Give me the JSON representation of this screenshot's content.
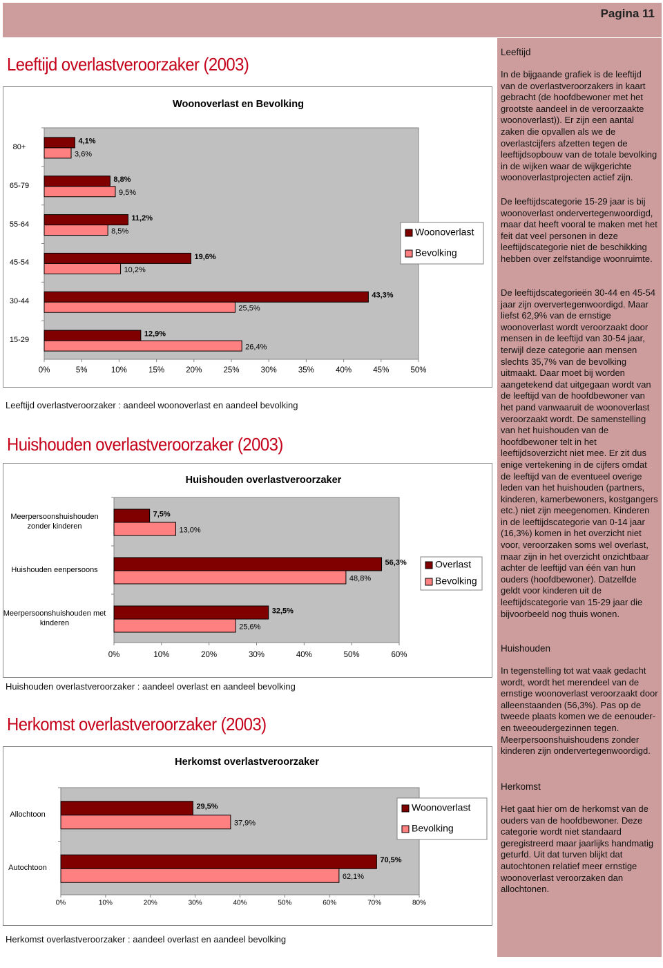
{
  "header": {
    "page": "Pagina 11"
  },
  "headings": [
    "Leeftijd overlastveroorzaker (2003)",
    "Huishouden overlastveroorzaker (2003)",
    "Herkomst overlastveroorzaker (2003)"
  ],
  "captions": [
    "Leeftijd overlastveroorzaker : aandeel woonoverlast en aandeel bevolking",
    "Huishouden overlastveroorzaker : aandeel overlast en aandeel bevolking",
    "Herkomst overlastveroorzaker : aandeel overlast en aandeel bevolking"
  ],
  "chart_data": [
    {
      "type": "bar",
      "orientation": "horizontal",
      "title": "Woonoverlast en Bevolking",
      "categories": [
        "80+",
        "65-79",
        "55-64",
        "45-54",
        "30-44",
        "15-29"
      ],
      "series": [
        {
          "name": "Woonoverlast",
          "color": "#800000",
          "values": [
            4.1,
            8.8,
            11.2,
            19.6,
            43.3,
            12.9
          ],
          "value_labels": [
            "4,1%",
            "8,8%",
            "11,2%",
            "19,6%",
            "43,3%",
            "12,9%"
          ]
        },
        {
          "name": "Bevolking",
          "color": "#ff8080",
          "values": [
            3.6,
            9.5,
            8.5,
            10.2,
            25.5,
            26.4
          ],
          "value_labels": [
            "3,6%",
            "9,5%",
            "8,5%",
            "10,2%",
            "25,5%",
            "26,4%"
          ]
        }
      ],
      "xlim": [
        0,
        50
      ],
      "xticks": [
        {
          "value": 0,
          "label": "0%"
        },
        {
          "value": 5,
          "label": "5%"
        },
        {
          "value": 10,
          "label": "10%"
        },
        {
          "value": 15,
          "label": "15%"
        },
        {
          "value": 20,
          "label": "20%"
        },
        {
          "value": 25,
          "label": "25%"
        },
        {
          "value": 30,
          "label": "30%"
        },
        {
          "value": 35,
          "label": "35%"
        },
        {
          "value": 40,
          "label": "40%"
        },
        {
          "value": 45,
          "label": "45%"
        },
        {
          "value": 50,
          "label": "50%"
        }
      ],
      "legend": "right"
    },
    {
      "type": "bar",
      "orientation": "horizontal",
      "title": "Huishouden overlastveroorzaker",
      "categories": [
        "Meerpersoonshuishouden zonder kinderen",
        "Huishouden eenpersoons",
        "Meerpersoonshuishouden met kinderen"
      ],
      "series": [
        {
          "name": "Overlast",
          "color": "#800000",
          "values": [
            7.5,
            56.3,
            32.5
          ],
          "value_labels": [
            "7,5%",
            "56,3%",
            "32,5%"
          ]
        },
        {
          "name": "Bevolking",
          "color": "#ff8080",
          "values": [
            13.0,
            48.8,
            25.6
          ],
          "value_labels": [
            "13,0%",
            "48,8%",
            "25,6%"
          ]
        }
      ],
      "xlim": [
        0,
        60
      ],
      "xticks": [
        {
          "value": 0,
          "label": "0%"
        },
        {
          "value": 10,
          "label": "10%"
        },
        {
          "value": 20,
          "label": "20%"
        },
        {
          "value": 30,
          "label": "30%"
        },
        {
          "value": 40,
          "label": "40%"
        },
        {
          "value": 50,
          "label": "50%"
        },
        {
          "value": 60,
          "label": "60%"
        }
      ],
      "legend": "right"
    },
    {
      "type": "bar",
      "orientation": "horizontal",
      "title": "Herkomst overlastveroorzaker",
      "categories": [
        "Allochtoon",
        "Autochtoon"
      ],
      "series": [
        {
          "name": "Woonoverlast",
          "color": "#800000",
          "values": [
            29.5,
            70.5
          ],
          "value_labels": [
            "29,5%",
            "70,5%"
          ]
        },
        {
          "name": "Bevolking",
          "color": "#ff8080",
          "values": [
            37.9,
            62.1
          ],
          "value_labels": [
            "37,9%",
            "62,1%"
          ]
        }
      ],
      "xlim": [
        0,
        80
      ],
      "xticks": [
        {
          "value": 0,
          "label": "0%"
        },
        {
          "value": 10,
          "label": "10%"
        },
        {
          "value": 20,
          "label": "20%"
        },
        {
          "value": 30,
          "label": "30%"
        },
        {
          "value": 40,
          "label": "40%"
        },
        {
          "value": 50,
          "label": "50%"
        },
        {
          "value": 60,
          "label": "60%"
        },
        {
          "value": 70,
          "label": "70%"
        },
        {
          "value": 80,
          "label": "80%"
        }
      ],
      "legend": "right"
    }
  ],
  "sidebar": {
    "sections": [
      {
        "heading": "Leeftijd",
        "paragraphs": [
          "In de bijgaande grafiek is de leeftijd van de overlastveroorzakers in kaart gebracht (de hoofdbewoner met het grootste aandeel in de veroorzaakte woonoverlast)). Er zijn een aantal zaken die opvallen als we de overlastcijfers afzetten tegen de leeftijdsopbouw van de totale bevolking in de wijken waar de wijkgerichte woonoverlastprojecten actief zijn.",
          "De leeftijdscategorie 15-29 jaar is bij woonoverlast ondervertegenwoordigd, maar dat heeft vooral te maken met het feit dat veel personen in deze leeftijdscategorie niet de beschikking hebben over zelfstandige woonruimte.",
          "De leeftijdscategorieën 30-44 en 45-54 jaar zijn oververtegenwoordigd. Maar liefst 62,9% van de ernstige woonoverlast wordt veroorzaakt door mensen in de leeftijd van 30-54 jaar, terwijl deze categorie aan mensen slechts 35,7% van de bevolking uitmaakt. Daar moet bij worden aangetekend dat uitgegaan wordt van de leeftijd van de hoofdbewoner van het pand vanwaaruit de woonoverlast veroorzaakt wordt. De samenstelling van het huishouden van de hoofdbewoner telt in het leeftijdsoverzicht niet mee. Er zit dus enige vertekening in de cijfers omdat de leeftijd van de eventueel overige leden van het huishouden (partners, kinderen, kamerbewoners, kostgangers etc.) niet zijn meegenomen. Kinderen in de leeftijdscategorie van 0-14 jaar (16,3%) komen in het overzicht niet voor, veroorzaken soms wel overlast, maar zijn in het overzicht onzichtbaar achter de leeftijd van één van hun ouders (hoofdbewoner). Datzelfde geldt voor kinderen uit de leeftijdscategorie van 15-29 jaar die bijvoorbeeld nog thuis wonen."
        ]
      },
      {
        "heading": "Huishouden",
        "paragraphs": [
          "In tegenstelling tot wat vaak gedacht wordt, wordt het merendeel van de ernstige woonoverlast veroorzaakt door alleenstaanden (56,3%). Pas op de tweede plaats komen we de eenouder- en tweeoudergezinnen tegen. Meerpersoonshuishoudens zonder kinderen zijn ondervertegenwoordigd."
        ]
      },
      {
        "heading": "Herkomst",
        "paragraphs": [
          "Het gaat hier om de herkomst van de ouders van de hoofdbewoner. Deze categorie wordt niet standaard geregistreerd maar jaarlijks handmatig geturfd. Uit dat turven blijkt dat autochtonen relatief meer ernstige woonoverlast veroorzaken dan allochtonen."
        ]
      }
    ]
  }
}
